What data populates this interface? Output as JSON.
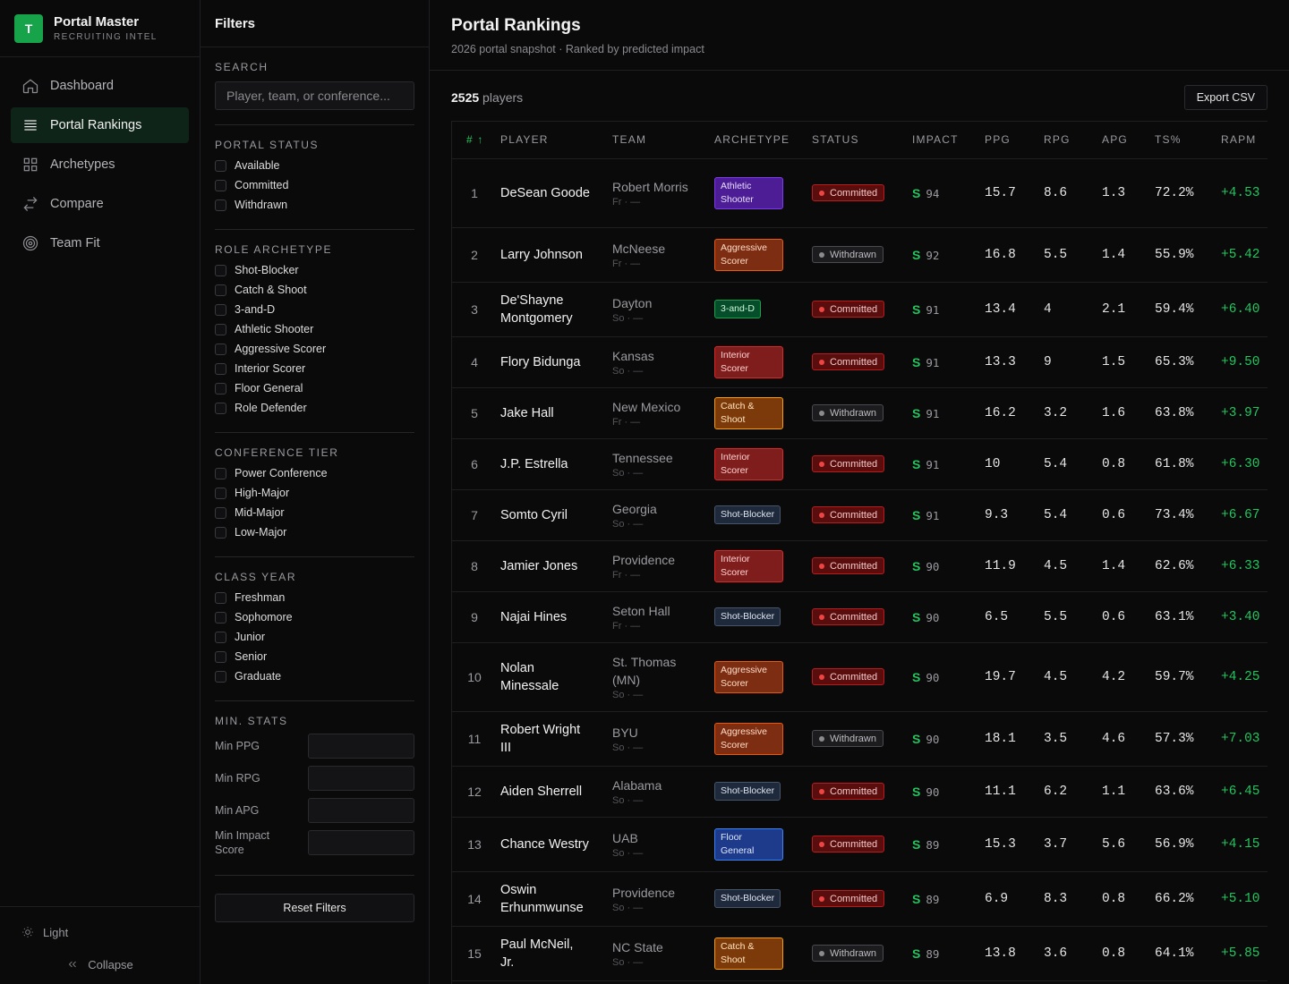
{
  "brand": {
    "logo_letter": "T",
    "name": "Portal Master",
    "tagline": "RECRUITING INTEL"
  },
  "nav": [
    {
      "label": "Dashboard",
      "icon": "home-icon",
      "active": false
    },
    {
      "label": "Portal Rankings",
      "icon": "list-icon",
      "active": true
    },
    {
      "label": "Archetypes",
      "icon": "grid-icon",
      "active": false
    },
    {
      "label": "Compare",
      "icon": "swap-icon",
      "active": false
    },
    {
      "label": "Team Fit",
      "icon": "target-icon",
      "active": false
    }
  ],
  "footer": {
    "theme_label": "Light",
    "collapse_label": "Collapse"
  },
  "filters": {
    "title": "Filters",
    "search": {
      "title": "SEARCH",
      "placeholder": "Player, team, or conference..."
    },
    "portal_status": {
      "title": "PORTAL STATUS",
      "options": [
        "Available",
        "Committed",
        "Withdrawn"
      ]
    },
    "role_archetype": {
      "title": "ROLE ARCHETYPE",
      "options": [
        "Shot-Blocker",
        "Catch & Shoot",
        "3-and-D",
        "Athletic Shooter",
        "Aggressive Scorer",
        "Interior Scorer",
        "Floor General",
        "Role Defender"
      ]
    },
    "conference_tier": {
      "title": "CONFERENCE TIER",
      "options": [
        "Power Conference",
        "High-Major",
        "Mid-Major",
        "Low-Major"
      ]
    },
    "class_year": {
      "title": "CLASS YEAR",
      "options": [
        "Freshman",
        "Sophomore",
        "Junior",
        "Senior",
        "Graduate"
      ]
    },
    "min_stats": {
      "title": "MIN. STATS",
      "fields": [
        "Min PPG",
        "Min RPG",
        "Min APG",
        "Min Impact Score"
      ]
    },
    "reset_label": "Reset Filters"
  },
  "main": {
    "title": "Portal Rankings",
    "subtitle": "2026 portal snapshot · Ranked by predicted impact",
    "count_number": "2525",
    "count_label": "players",
    "export_label": "Export CSV",
    "columns": [
      "# ↑",
      "PLAYER",
      "TEAM",
      "ARCHETYPE",
      "STATUS",
      "IMPACT",
      "PPG",
      "RPG",
      "APG",
      "TS%",
      "RAPM"
    ],
    "tier_letter": "S",
    "rows": [
      {
        "rank": "1",
        "player": "DeSean Goode",
        "team": "Robert Morris",
        "sub": "Fr · —",
        "archetype": "Athletic Shooter",
        "status": "Committed",
        "impact": "94",
        "ppg": "15.7",
        "rpg": "8.6",
        "apg": "1.3",
        "ts": "72.2%",
        "rapm": "+4.53"
      },
      {
        "rank": "2",
        "player": "Larry Johnson",
        "team": "McNeese",
        "sub": "Fr · —",
        "archetype": "Aggressive Scorer",
        "status": "Withdrawn",
        "impact": "92",
        "ppg": "16.8",
        "rpg": "5.5",
        "apg": "1.4",
        "ts": "55.9%",
        "rapm": "+5.42"
      },
      {
        "rank": "3",
        "player": "De'Shayne Montgomery",
        "team": "Dayton",
        "sub": "So · —",
        "archetype": "3-and-D",
        "status": "Committed",
        "impact": "91",
        "ppg": "13.4",
        "rpg": "4",
        "apg": "2.1",
        "ts": "59.4%",
        "rapm": "+6.40"
      },
      {
        "rank": "4",
        "player": "Flory Bidunga",
        "team": "Kansas",
        "sub": "So · —",
        "archetype": "Interior Scorer",
        "status": "Committed",
        "impact": "91",
        "ppg": "13.3",
        "rpg": "9",
        "apg": "1.5",
        "ts": "65.3%",
        "rapm": "+9.50"
      },
      {
        "rank": "5",
        "player": "Jake Hall",
        "team": "New Mexico",
        "sub": "Fr · —",
        "archetype": "Catch & Shoot",
        "status": "Withdrawn",
        "impact": "91",
        "ppg": "16.2",
        "rpg": "3.2",
        "apg": "1.6",
        "ts": "63.8%",
        "rapm": "+3.97"
      },
      {
        "rank": "6",
        "player": "J.P. Estrella",
        "team": "Tennessee",
        "sub": "So · —",
        "archetype": "Interior Scorer",
        "status": "Committed",
        "impact": "91",
        "ppg": "10",
        "rpg": "5.4",
        "apg": "0.8",
        "ts": "61.8%",
        "rapm": "+6.30"
      },
      {
        "rank": "7",
        "player": "Somto Cyril",
        "team": "Georgia",
        "sub": "So · —",
        "archetype": "Shot-Blocker",
        "status": "Committed",
        "impact": "91",
        "ppg": "9.3",
        "rpg": "5.4",
        "apg": "0.6",
        "ts": "73.4%",
        "rapm": "+6.67"
      },
      {
        "rank": "8",
        "player": "Jamier Jones",
        "team": "Providence",
        "sub": "Fr · —",
        "archetype": "Interior Scorer",
        "status": "Committed",
        "impact": "90",
        "ppg": "11.9",
        "rpg": "4.5",
        "apg": "1.4",
        "ts": "62.6%",
        "rapm": "+6.33"
      },
      {
        "rank": "9",
        "player": "Najai Hines",
        "team": "Seton Hall",
        "sub": "Fr · —",
        "archetype": "Shot-Blocker",
        "status": "Committed",
        "impact": "90",
        "ppg": "6.5",
        "rpg": "5.5",
        "apg": "0.6",
        "ts": "63.1%",
        "rapm": "+3.40"
      },
      {
        "rank": "10",
        "player": "Nolan Minessale",
        "team": "St. Thomas (MN)",
        "sub": "So · —",
        "archetype": "Aggressive Scorer",
        "status": "Committed",
        "impact": "90",
        "ppg": "19.7",
        "rpg": "4.5",
        "apg": "4.2",
        "ts": "59.7%",
        "rapm": "+4.25"
      },
      {
        "rank": "11",
        "player": "Robert Wright III",
        "team": "BYU",
        "sub": "So · —",
        "archetype": "Aggressive Scorer",
        "status": "Withdrawn",
        "impact": "90",
        "ppg": "18.1",
        "rpg": "3.5",
        "apg": "4.6",
        "ts": "57.3%",
        "rapm": "+7.03"
      },
      {
        "rank": "12",
        "player": "Aiden Sherrell",
        "team": "Alabama",
        "sub": "So · —",
        "archetype": "Shot-Blocker",
        "status": "Committed",
        "impact": "90",
        "ppg": "11.1",
        "rpg": "6.2",
        "apg": "1.1",
        "ts": "63.6%",
        "rapm": "+6.45"
      },
      {
        "rank": "13",
        "player": "Chance Westry",
        "team": "UAB",
        "sub": "So · —",
        "archetype": "Floor General",
        "status": "Committed",
        "impact": "89",
        "ppg": "15.3",
        "rpg": "3.7",
        "apg": "5.6",
        "ts": "56.9%",
        "rapm": "+4.15"
      },
      {
        "rank": "14",
        "player": "Oswin Erhunmwunse",
        "team": "Providence",
        "sub": "So · —",
        "archetype": "Shot-Blocker",
        "status": "Committed",
        "impact": "89",
        "ppg": "6.9",
        "rpg": "8.3",
        "apg": "0.8",
        "ts": "66.2%",
        "rapm": "+5.10"
      },
      {
        "rank": "15",
        "player": "Paul McNeil, Jr.",
        "team": "NC State",
        "sub": "So · —",
        "archetype": "Catch & Shoot",
        "status": "Withdrawn",
        "impact": "89",
        "ppg": "13.8",
        "rpg": "3.6",
        "apg": "0.8",
        "ts": "64.1%",
        "rapm": "+5.85"
      }
    ]
  },
  "colors": {
    "accent": "#16a34a",
    "archetype": {
      "Athletic Shooter": {
        "bg": "#4c1d95",
        "border": "#7c3aed",
        "fg": "#e9ddff"
      },
      "Aggressive Scorer": {
        "bg": "#7c2d12",
        "border": "#ea580c",
        "fg": "#ffdcc7"
      },
      "3-and-D": {
        "bg": "#064e2b",
        "border": "#16a34a",
        "fg": "#c9f5d7"
      },
      "Interior Scorer": {
        "bg": "#7f1d1d",
        "border": "#dc2626",
        "fg": "#ffd0d0"
      },
      "Catch & Shoot": {
        "bg": "#7c3a0a",
        "border": "#f59e0b",
        "fg": "#ffe3bd"
      },
      "Shot-Blocker": {
        "bg": "#1e293b",
        "border": "#475569",
        "fg": "#dbe3ee"
      },
      "Floor General": {
        "bg": "#1e3a8a",
        "border": "#3b82f6",
        "fg": "#dbe7ff"
      }
    }
  }
}
